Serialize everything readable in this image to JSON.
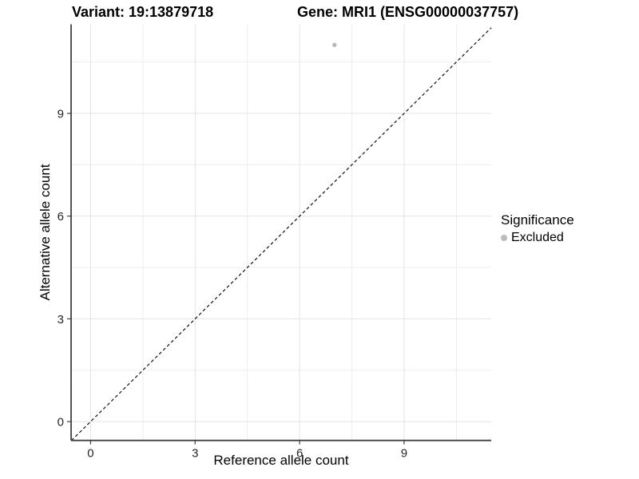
{
  "titles": {
    "variant": "Variant: 19:13879718",
    "gene": "Gene: MRI1 (ENSG00000037757)"
  },
  "axes": {
    "x": {
      "label": "Reference allele count",
      "tick_labels": [
        "0",
        "3",
        "6",
        "9"
      ]
    },
    "y": {
      "label": "Alternative allele count",
      "tick_labels": [
        "0",
        "3",
        "6",
        "9"
      ]
    }
  },
  "legend": {
    "title": "Significance",
    "items": [
      {
        "label": "Excluded",
        "color": "#bcbcbc",
        "marker": "circle-icon"
      }
    ]
  },
  "colors": {
    "point": "#b9b9b9",
    "reference_line": "#111111",
    "axis_line": "#404040",
    "tick_text": "#262626",
    "grid_major": "#e3e3e3",
    "grid_minor": "#ededed"
  },
  "chart_data": {
    "type": "scatter",
    "title_left": "Variant: 19:13879718",
    "title_right": "Gene: MRI1 (ENSG00000037757)",
    "xlabel": "Reference allele count",
    "ylabel": "Alternative allele count",
    "xlim": [
      -0.56,
      11.5
    ],
    "ylim": [
      -0.55,
      11.6
    ],
    "x_major_ticks": [
      0,
      3,
      6,
      9
    ],
    "y_major_ticks": [
      0,
      3,
      6,
      9
    ],
    "x_minor_gridlines": [
      1.5,
      4.5,
      7.5,
      10.5
    ],
    "y_minor_gridlines": [
      1.5,
      4.5,
      7.5,
      10.5
    ],
    "grid": true,
    "legend_position": "right",
    "series": [
      {
        "name": "Excluded",
        "color": "#b9b9b9",
        "points": [
          {
            "x": 7,
            "y": 11
          }
        ]
      }
    ],
    "reference_line": {
      "slope": 1,
      "intercept": 0,
      "style": "dashed",
      "color": "#111111"
    }
  }
}
